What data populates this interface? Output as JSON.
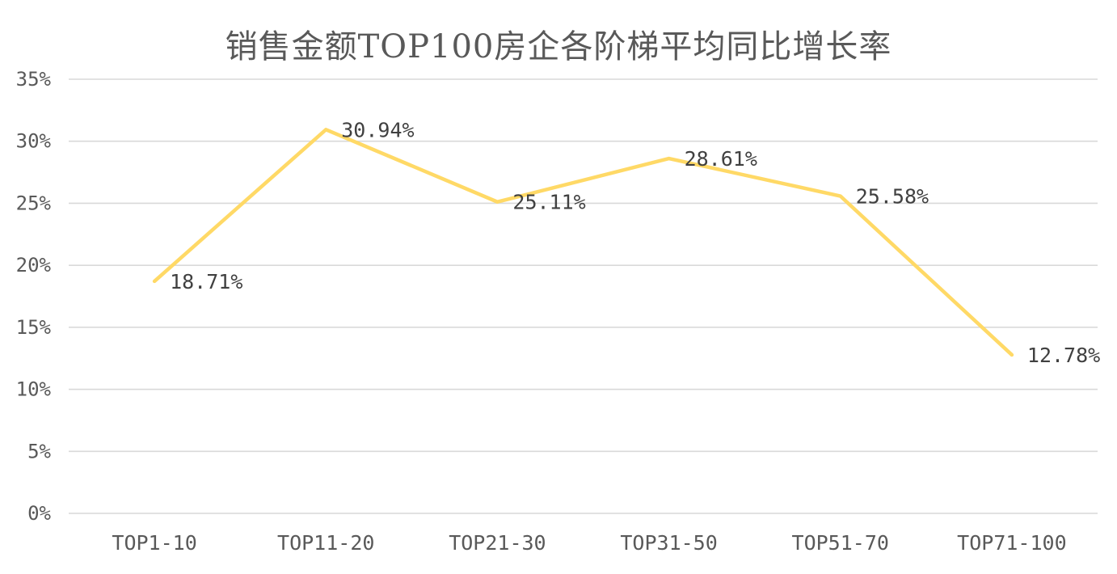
{
  "chart": {
    "title": "销售金额TOP100房企各阶梯平均同比增长率"
  },
  "chart_data": {
    "type": "line",
    "title": "销售金额TOP100房企各阶梯平均同比增长率",
    "categories": [
      "TOP1-10",
      "TOP11-20",
      "TOP21-30",
      "TOP31-50",
      "TOP51-70",
      "TOP71-100"
    ],
    "values": [
      18.71,
      30.94,
      25.11,
      28.61,
      25.58,
      12.78
    ],
    "data_labels": [
      "18.71%",
      "30.94%",
      "25.11%",
      "28.61%",
      "25.58%",
      "12.78%"
    ],
    "xlabel": "",
    "ylabel": "",
    "ylim": [
      0,
      35
    ],
    "ytick_step": 5,
    "ytick_labels": [
      "0%",
      "5%",
      "10%",
      "15%",
      "20%",
      "25%",
      "30%",
      "35%"
    ],
    "grid": "horizontal",
    "legend": "none",
    "line_color": "#FFD966",
    "gridline_color": "#D9D9D9",
    "axis_label_color": "#595959",
    "data_label_color": "#404040",
    "title_color": "#595959",
    "background_color": "#FFFFFF"
  }
}
